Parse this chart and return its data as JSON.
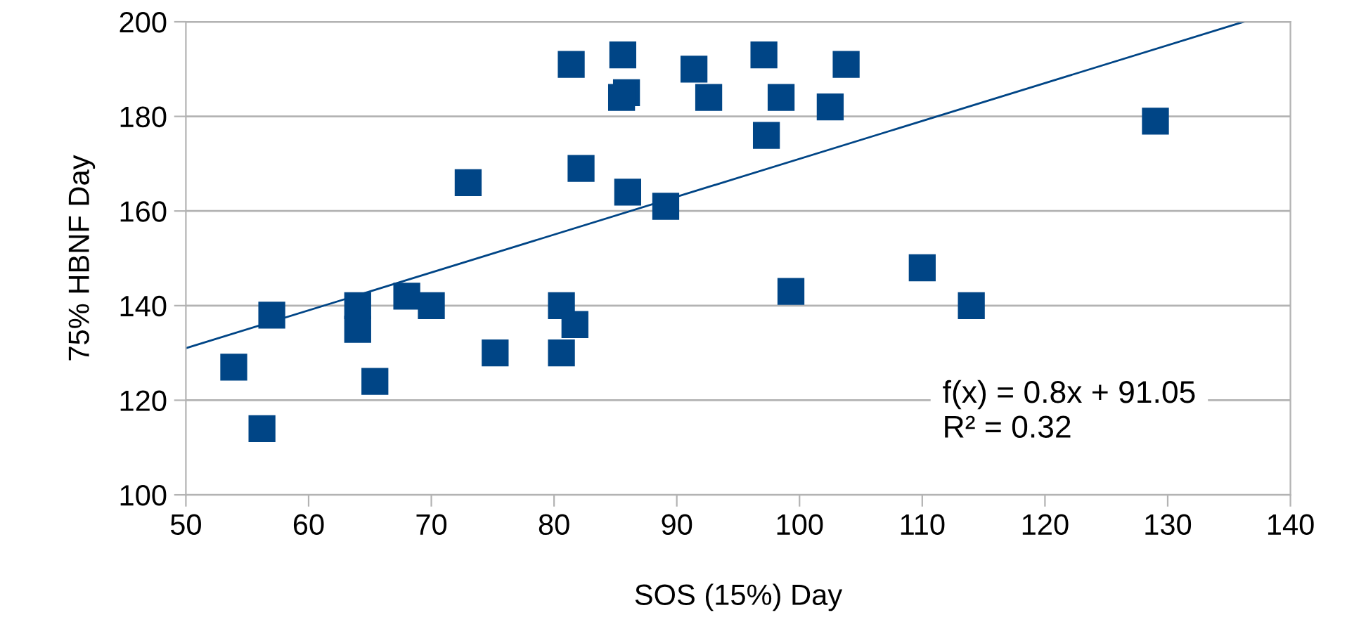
{
  "chart_data": {
    "type": "scatter",
    "xlabel": "SOS (15%) Day",
    "ylabel": "75% HBNF Day",
    "xlim": [
      50,
      140
    ],
    "xticks": [
      50,
      60,
      70,
      80,
      90,
      100,
      110,
      120,
      130,
      140
    ],
    "ylim": [
      100,
      200
    ],
    "yticks": [
      100,
      120,
      140,
      160,
      180,
      200
    ],
    "grid": "y",
    "marker": "square",
    "annotations": [
      "f(x) = 0.8x + 91.05",
      "R² = 0.32"
    ],
    "series": [
      {
        "color": "#004586",
        "x": [
          53.9,
          56.2,
          57.0,
          64,
          64,
          65.4,
          68,
          70,
          73,
          75.2,
          80.6,
          80.6,
          81.7,
          81.4,
          82.2,
          85.6,
          85.9,
          85.5,
          86,
          89.1,
          91.4,
          92.6,
          97.1,
          98.5,
          97.3,
          102.5,
          103.8,
          129,
          99.3,
          110,
          114
        ],
        "values": [
          127,
          114,
          138,
          140,
          135,
          124,
          142,
          140,
          166,
          130,
          140,
          130,
          136,
          191,
          169,
          193,
          185,
          184,
          164,
          161,
          190,
          184,
          193,
          184,
          176,
          182,
          191,
          179,
          143,
          148,
          140
        ]
      },
      {
        "type": "line",
        "color": "#004586",
        "line_style": "solid",
        "marker": "none",
        "x": [
          50,
          136.19
        ],
        "values": [
          131,
          200
        ]
      }
    ]
  }
}
